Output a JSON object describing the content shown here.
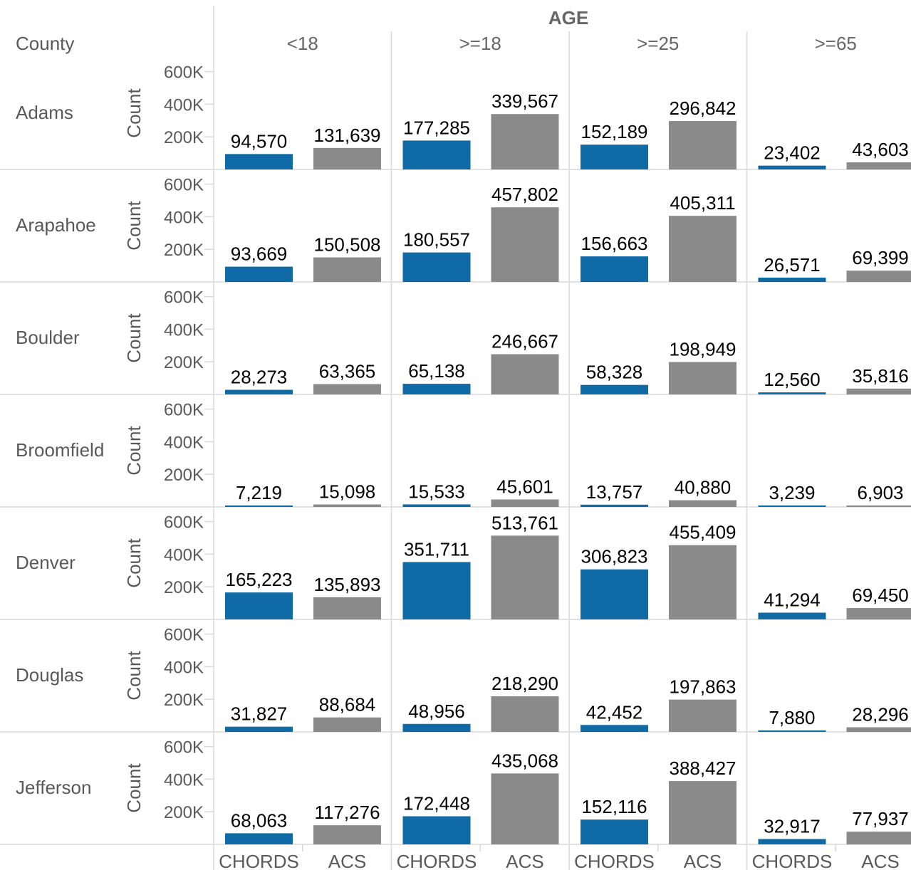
{
  "chart_data": {
    "type": "bar",
    "title": "",
    "row_header": "County",
    "column_group_title": "AGE",
    "age_groups": [
      "<18",
      ">=18",
      ">=25",
      ">=65"
    ],
    "sources": [
      "CHORDS",
      "ACS"
    ],
    "ylabel": "Count",
    "ylim": [
      0,
      600000
    ],
    "y_ticks": [
      200000,
      400000,
      600000
    ],
    "y_tick_labels": [
      "200K",
      "400K",
      "600K"
    ],
    "colors": {
      "CHORDS": "#0f6aa6",
      "ACS": "#8a8a8a"
    },
    "rows": [
      {
        "county": "Adams",
        "values": [
          [
            94570,
            131639
          ],
          [
            177285,
            339567
          ],
          [
            152189,
            296842
          ],
          [
            23402,
            43603
          ]
        ],
        "labels": [
          [
            "94,570",
            "131,639"
          ],
          [
            "177,285",
            "339,567"
          ],
          [
            "152,189",
            "296,842"
          ],
          [
            "23,402",
            "43,603"
          ]
        ]
      },
      {
        "county": "Arapahoe",
        "values": [
          [
            93669,
            150508
          ],
          [
            180557,
            457802
          ],
          [
            156663,
            405311
          ],
          [
            26571,
            69399
          ]
        ],
        "labels": [
          [
            "93,669",
            "150,508"
          ],
          [
            "180,557",
            "457,802"
          ],
          [
            "156,663",
            "405,311"
          ],
          [
            "26,571",
            "69,399"
          ]
        ]
      },
      {
        "county": "Boulder",
        "values": [
          [
            28273,
            63365
          ],
          [
            65138,
            246667
          ],
          [
            58328,
            198949
          ],
          [
            12560,
            35816
          ]
        ],
        "labels": [
          [
            "28,273",
            "63,365"
          ],
          [
            "65,138",
            "246,667"
          ],
          [
            "58,328",
            "198,949"
          ],
          [
            "12,560",
            "35,816"
          ]
        ]
      },
      {
        "county": "Broomfield",
        "values": [
          [
            7219,
            15098
          ],
          [
            15533,
            45601
          ],
          [
            13757,
            40880
          ],
          [
            3239,
            6903
          ]
        ],
        "labels": [
          [
            "7,219",
            "15,098"
          ],
          [
            "15,533",
            "45,601"
          ],
          [
            "13,757",
            "40,880"
          ],
          [
            "3,239",
            "6,903"
          ]
        ]
      },
      {
        "county": "Denver",
        "values": [
          [
            165223,
            135893
          ],
          [
            351711,
            513761
          ],
          [
            306823,
            455409
          ],
          [
            41294,
            69450
          ]
        ],
        "labels": [
          [
            "165,223",
            "135,893"
          ],
          [
            "351,711",
            "513,761"
          ],
          [
            "306,823",
            "455,409"
          ],
          [
            "41,294",
            "69,450"
          ]
        ]
      },
      {
        "county": "Douglas",
        "values": [
          [
            31827,
            88684
          ],
          [
            48956,
            218290
          ],
          [
            42452,
            197863
          ],
          [
            7880,
            28296
          ]
        ],
        "labels": [
          [
            "31,827",
            "88,684"
          ],
          [
            "48,956",
            "218,290"
          ],
          [
            "42,452",
            "197,863"
          ],
          [
            "7,880",
            "28,296"
          ]
        ]
      },
      {
        "county": "Jefferson",
        "values": [
          [
            68063,
            117276
          ],
          [
            172448,
            435068
          ],
          [
            152116,
            388427
          ],
          [
            32917,
            77937
          ]
        ],
        "labels": [
          [
            "68,063",
            "117,276"
          ],
          [
            "172,448",
            "435,068"
          ],
          [
            "152,116",
            "388,427"
          ],
          [
            "32,917",
            "77,937"
          ]
        ]
      }
    ]
  }
}
